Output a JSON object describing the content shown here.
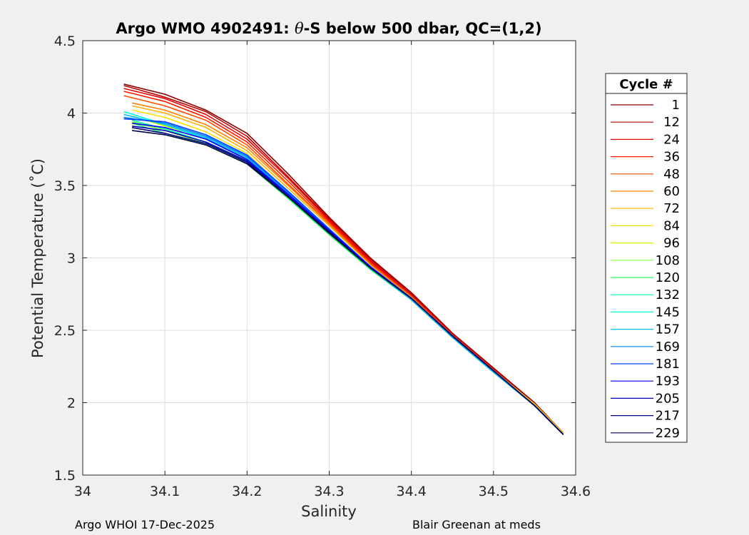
{
  "chart_data": {
    "type": "line",
    "title_prefix": "Argo WMO 4902491: ",
    "title_theta": "θ",
    "title_suffix": "-S below 500 dbar,  QC=(1,2)",
    "xlabel": "Salinity",
    "ylabel": "Potential Temperature (˚C)",
    "xlim": [
      34,
      34.6
    ],
    "ylim": [
      1.5,
      4.5
    ],
    "xticks": [
      "34",
      "34.1",
      "34.2",
      "34.3",
      "34.4",
      "34.5",
      "34.6"
    ],
    "yticks": [
      "1.5",
      "2",
      "2.5",
      "3",
      "3.5",
      "4",
      "4.5"
    ],
    "grid": true,
    "legend_title": "Cycle #",
    "legend_position": "right-outside",
    "series": [
      {
        "name": "1",
        "color": "#800000",
        "x": [
          34.05,
          34.1,
          34.15,
          34.2,
          34.25,
          34.3,
          34.35,
          34.4,
          34.45,
          34.5,
          34.55,
          34.585
        ],
        "y": [
          4.2,
          4.13,
          4.02,
          3.86,
          3.58,
          3.28,
          3.0,
          2.76,
          2.48,
          2.24,
          2.0,
          1.79
        ]
      },
      {
        "name": "12",
        "color": "#b80000",
        "x": [
          34.05,
          34.1,
          34.15,
          34.2,
          34.25,
          34.3,
          34.35,
          34.4,
          34.45,
          34.5,
          34.55,
          34.585
        ],
        "y": [
          4.19,
          4.11,
          4.01,
          3.84,
          3.56,
          3.27,
          2.99,
          2.75,
          2.47,
          2.23,
          1.99,
          1.79
        ]
      },
      {
        "name": "24",
        "color": "#e60000",
        "x": [
          34.05,
          34.1,
          34.15,
          34.2,
          34.25,
          34.3,
          34.35,
          34.4,
          34.45,
          34.5,
          34.55,
          34.585
        ],
        "y": [
          4.17,
          4.1,
          3.99,
          3.82,
          3.55,
          3.26,
          2.98,
          2.74,
          2.47,
          2.23,
          1.99,
          1.79
        ]
      },
      {
        "name": "36",
        "color": "#ff1a00",
        "x": [
          34.05,
          34.1,
          34.15,
          34.2,
          34.25,
          34.3,
          34.35,
          34.4,
          34.45,
          34.5,
          34.55,
          34.585
        ],
        "y": [
          4.15,
          4.08,
          3.97,
          3.8,
          3.53,
          3.25,
          2.97,
          2.74,
          2.47,
          2.23,
          1.99,
          1.79
        ]
      },
      {
        "name": "48",
        "color": "#ff4a00",
        "x": [
          34.05,
          34.1,
          34.15,
          34.2,
          34.25,
          34.3,
          34.35,
          34.4,
          34.45,
          34.5,
          34.55,
          34.585
        ],
        "y": [
          4.12,
          4.05,
          3.95,
          3.78,
          3.51,
          3.24,
          2.96,
          2.73,
          2.46,
          2.22,
          1.99,
          1.79
        ]
      },
      {
        "name": "60",
        "color": "#ff8000",
        "x": [
          34.06,
          34.1,
          34.15,
          34.2,
          34.25,
          34.3,
          34.35,
          34.4,
          34.45,
          34.5,
          34.55,
          34.585
        ],
        "y": [
          4.07,
          4.02,
          3.92,
          3.76,
          3.5,
          3.23,
          2.95,
          2.73,
          2.46,
          2.22,
          1.99,
          1.79
        ]
      },
      {
        "name": "72",
        "color": "#ffb000",
        "x": [
          34.06,
          34.1,
          34.15,
          34.2,
          34.25,
          34.3,
          34.35,
          34.4,
          34.45,
          34.5,
          34.55,
          34.585
        ],
        "y": [
          4.05,
          4.0,
          3.9,
          3.74,
          3.48,
          3.22,
          2.95,
          2.72,
          2.46,
          2.22,
          1.99,
          1.79
        ]
      },
      {
        "name": "84",
        "color": "#ffe000",
        "x": [
          34.06,
          34.1,
          34.15,
          34.2,
          34.25,
          34.3,
          34.35,
          34.4,
          34.45,
          34.5,
          34.55,
          34.585
        ],
        "y": [
          4.02,
          3.97,
          3.87,
          3.72,
          3.46,
          3.2,
          2.94,
          2.72,
          2.46,
          2.22,
          1.99,
          1.78
        ]
      },
      {
        "name": "96",
        "color": "#ccff00",
        "x": [
          34.06,
          34.1,
          34.15,
          34.2,
          34.25,
          34.3,
          34.35,
          34.4,
          34.45,
          34.5,
          34.55,
          34.585
        ],
        "y": [
          3.98,
          3.91,
          3.83,
          3.68,
          3.44,
          3.19,
          2.93,
          2.71,
          2.45,
          2.21,
          1.98,
          1.78
        ]
      },
      {
        "name": "108",
        "color": "#80ff40",
        "x": [
          34.06,
          34.1,
          34.15,
          34.2,
          34.25,
          34.3,
          34.35,
          34.4,
          34.45,
          34.5,
          34.55,
          34.585
        ],
        "y": [
          3.94,
          3.88,
          3.79,
          3.66,
          3.42,
          3.16,
          2.92,
          2.71,
          2.45,
          2.21,
          1.98,
          1.78
        ]
      },
      {
        "name": "120",
        "color": "#20ff60",
        "x": [
          34.06,
          34.1,
          34.15,
          34.2,
          34.25,
          34.3,
          34.35,
          34.4,
          34.45,
          34.5,
          34.55,
          34.585
        ],
        "y": [
          3.93,
          3.86,
          3.78,
          3.65,
          3.41,
          3.16,
          2.92,
          2.71,
          2.45,
          2.21,
          1.98,
          1.78
        ]
      },
      {
        "name": "132",
        "color": "#00ffa0",
        "x": [
          34.06,
          34.1,
          34.15,
          34.2,
          34.25,
          34.3,
          34.35,
          34.4,
          34.45,
          34.5,
          34.55,
          34.585
        ],
        "y": [
          3.95,
          3.89,
          3.8,
          3.66,
          3.42,
          3.17,
          2.92,
          2.71,
          2.45,
          2.21,
          1.98,
          1.78
        ]
      },
      {
        "name": "145",
        "color": "#00ffe0",
        "x": [
          34.05,
          34.1,
          34.15,
          34.2,
          34.25,
          34.3,
          34.35,
          34.4,
          34.45,
          34.5,
          34.55,
          34.585
        ],
        "y": [
          4.01,
          3.92,
          3.82,
          3.68,
          3.43,
          3.17,
          2.93,
          2.71,
          2.45,
          2.21,
          1.98,
          1.78
        ]
      },
      {
        "name": "157",
        "color": "#00c0ff",
        "x": [
          34.05,
          34.1,
          34.15,
          34.2,
          34.25,
          34.3,
          34.35,
          34.4,
          34.45,
          34.5,
          34.55,
          34.585
        ],
        "y": [
          3.99,
          3.92,
          3.83,
          3.69,
          3.44,
          3.18,
          2.93,
          2.71,
          2.45,
          2.21,
          1.98,
          1.78
        ]
      },
      {
        "name": "169",
        "color": "#0080ff",
        "x": [
          34.05,
          34.1,
          34.15,
          34.2,
          34.25,
          34.3,
          34.35,
          34.4,
          34.45,
          34.5,
          34.55,
          34.585
        ],
        "y": [
          3.97,
          3.93,
          3.84,
          3.7,
          3.45,
          3.19,
          2.94,
          2.72,
          2.46,
          2.22,
          1.98,
          1.78
        ]
      },
      {
        "name": "181",
        "color": "#0040ff",
        "x": [
          34.05,
          34.1,
          34.15,
          34.2,
          34.25,
          34.3,
          34.35,
          34.4,
          34.45,
          34.5,
          34.55,
          34.585
        ],
        "y": [
          3.96,
          3.94,
          3.85,
          3.71,
          3.46,
          3.2,
          2.94,
          2.72,
          2.46,
          2.22,
          1.98,
          1.78
        ]
      },
      {
        "name": "193",
        "color": "#0000ff",
        "x": [
          34.06,
          34.1,
          34.15,
          34.2,
          34.25,
          34.3,
          34.35,
          34.4,
          34.45,
          34.5,
          34.55,
          34.585
        ],
        "y": [
          3.93,
          3.9,
          3.82,
          3.68,
          3.44,
          3.19,
          2.94,
          2.72,
          2.46,
          2.22,
          1.98,
          1.78
        ]
      },
      {
        "name": "205",
        "color": "#0000c0",
        "x": [
          34.06,
          34.1,
          34.15,
          34.2,
          34.25,
          34.3,
          34.35,
          34.4,
          34.45,
          34.5,
          34.55,
          34.585
        ],
        "y": [
          3.91,
          3.88,
          3.8,
          3.67,
          3.43,
          3.18,
          2.93,
          2.72,
          2.46,
          2.22,
          1.98,
          1.78
        ]
      },
      {
        "name": "217",
        "color": "#000080",
        "x": [
          34.06,
          34.1,
          34.15,
          34.2,
          34.25,
          34.3,
          34.35,
          34.4,
          34.45,
          34.5,
          34.55,
          34.585
        ],
        "y": [
          3.9,
          3.86,
          3.79,
          3.66,
          3.42,
          3.18,
          2.93,
          2.72,
          2.46,
          2.22,
          1.98,
          1.78
        ]
      },
      {
        "name": "229",
        "color": "#000050",
        "x": [
          34.06,
          34.1,
          34.15,
          34.2,
          34.25,
          34.3,
          34.35,
          34.4,
          34.45,
          34.5,
          34.55,
          34.585
        ],
        "y": [
          3.88,
          3.85,
          3.78,
          3.65,
          3.42,
          3.17,
          2.93,
          2.72,
          2.46,
          2.22,
          1.98,
          1.78
        ]
      }
    ]
  },
  "footer": {
    "left": "Argo WHOI 17-Dec-2025",
    "right": "Blair Greenan at meds"
  }
}
